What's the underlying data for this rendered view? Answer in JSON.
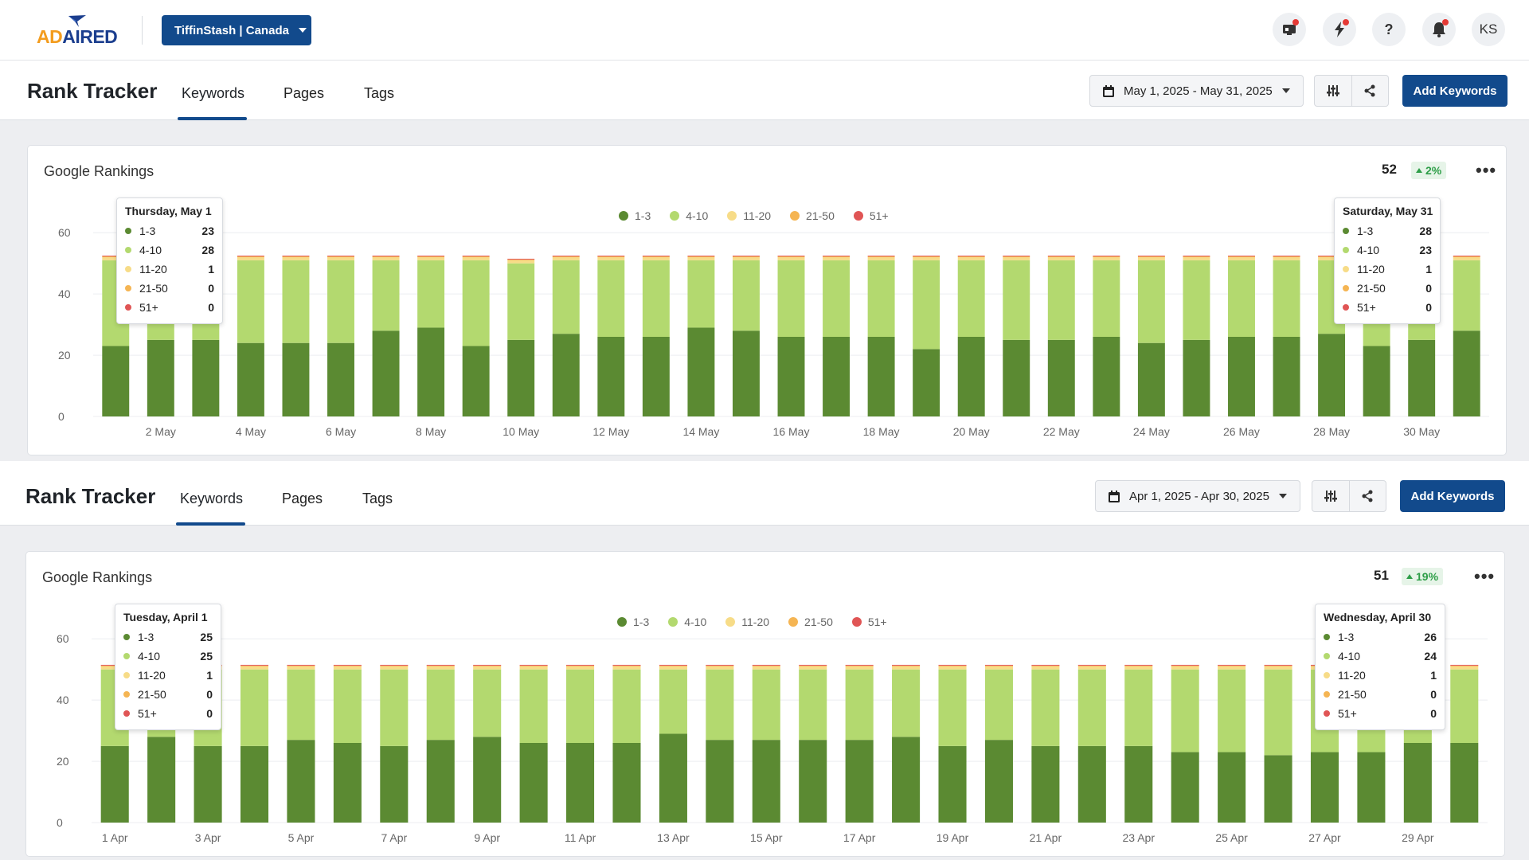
{
  "topbar": {
    "account_label": "TiffinStash | Canada",
    "avatar_initials": "KS",
    "icons": [
      "monitor-alert-icon",
      "bolt-icon",
      "help-icon",
      "bell-icon"
    ]
  },
  "colors": {
    "rank_1_3": "#5b8a32",
    "rank_4_10": "#b3d96f",
    "rank_11_20": "#f7dc88",
    "rank_21_50": "#f5b553",
    "rank_51_plus": "#e05555",
    "primary": "#124a8c"
  },
  "legend": [
    "1-3",
    "4-10",
    "11-20",
    "21-50",
    "51+"
  ],
  "panels": [
    {
      "title": "Rank Tracker",
      "tabs": [
        "Keywords",
        "Pages",
        "Tags"
      ],
      "active_tab": "Keywords",
      "date_range": "May 1, 2025 - May 31, 2025",
      "add_label": "Add Keywords",
      "card_title": "Google Rankings",
      "total": "52",
      "change": "2%",
      "tooltip_left": {
        "title": "Thursday, May 1",
        "rows": [
          {
            "label": "1-3",
            "value": "23"
          },
          {
            "label": "4-10",
            "value": "28"
          },
          {
            "label": "11-20",
            "value": "1"
          },
          {
            "label": "21-50",
            "value": "0"
          },
          {
            "label": "51+",
            "value": "0"
          }
        ]
      },
      "tooltip_right": {
        "title": "Saturday, May 31",
        "rows": [
          {
            "label": "1-3",
            "value": "28"
          },
          {
            "label": "4-10",
            "value": "23"
          },
          {
            "label": "11-20",
            "value": "1"
          },
          {
            "label": "21-50",
            "value": "0"
          },
          {
            "label": "51+",
            "value": "0"
          }
        ]
      }
    },
    {
      "title": "Rank Tracker",
      "tabs": [
        "Keywords",
        "Pages",
        "Tags"
      ],
      "active_tab": "Keywords",
      "date_range": "Apr 1, 2025 - Apr 30, 2025",
      "add_label": "Add Keywords",
      "card_title": "Google Rankings",
      "total": "51",
      "change": "19%",
      "tooltip_left": {
        "title": "Tuesday, April 1",
        "rows": [
          {
            "label": "1-3",
            "value": "25"
          },
          {
            "label": "4-10",
            "value": "25"
          },
          {
            "label": "11-20",
            "value": "1"
          },
          {
            "label": "21-50",
            "value": "0"
          },
          {
            "label": "51+",
            "value": "0"
          }
        ]
      },
      "tooltip_right": {
        "title": "Wednesday, April 30",
        "rows": [
          {
            "label": "1-3",
            "value": "26"
          },
          {
            "label": "4-10",
            "value": "24"
          },
          {
            "label": "11-20",
            "value": "1"
          },
          {
            "label": "21-50",
            "value": "0"
          },
          {
            "label": "51+",
            "value": "0"
          }
        ]
      }
    }
  ],
  "chart_data": [
    {
      "type": "bar",
      "stacked": true,
      "title": "Google Rankings",
      "ylim": [
        0,
        65
      ],
      "yticks": [
        0,
        20,
        40,
        60
      ],
      "grid": true,
      "legend_position": "top-center",
      "categories": [
        "1 May",
        "2 May",
        "3 May",
        "4 May",
        "5 May",
        "6 May",
        "7 May",
        "8 May",
        "9 May",
        "10 May",
        "11 May",
        "12 May",
        "13 May",
        "14 May",
        "15 May",
        "16 May",
        "17 May",
        "18 May",
        "19 May",
        "20 May",
        "21 May",
        "22 May",
        "23 May",
        "24 May",
        "25 May",
        "26 May",
        "27 May",
        "28 May",
        "29 May",
        "30 May",
        "31 May"
      ],
      "xtick_labels": [
        "2 May",
        "4 May",
        "6 May",
        "8 May",
        "10 May",
        "12 May",
        "14 May",
        "16 May",
        "18 May",
        "20 May",
        "22 May",
        "24 May",
        "26 May",
        "28 May",
        "30 May"
      ],
      "series": [
        {
          "name": "1-3",
          "values": [
            23,
            25,
            25,
            24,
            24,
            24,
            28,
            29,
            23,
            25,
            27,
            26,
            26,
            29,
            28,
            26,
            26,
            26,
            22,
            26,
            25,
            25,
            26,
            24,
            25,
            26,
            26,
            27,
            23,
            25,
            28
          ]
        },
        {
          "name": "4-10",
          "values": [
            28,
            26,
            26,
            27,
            27,
            27,
            23,
            22,
            28,
            25,
            24,
            25,
            25,
            22,
            23,
            25,
            25,
            25,
            29,
            25,
            26,
            26,
            25,
            27,
            26,
            25,
            25,
            24,
            28,
            26,
            23
          ]
        },
        {
          "name": "11-20",
          "values": [
            1,
            1,
            1,
            1,
            1,
            1,
            1,
            1,
            1,
            1,
            1,
            1,
            1,
            1,
            1,
            1,
            1,
            1,
            1,
            1,
            1,
            1,
            1,
            1,
            1,
            1,
            1,
            1,
            1,
            1,
            1
          ]
        },
        {
          "name": "21-50",
          "values": [
            0,
            0,
            0,
            0,
            0,
            0,
            0,
            0,
            0,
            0,
            0,
            0,
            0,
            0,
            0,
            0,
            0,
            0,
            0,
            0,
            0,
            0,
            0,
            0,
            0,
            0,
            0,
            0,
            0,
            0,
            0
          ]
        },
        {
          "name": "51+",
          "values": [
            0,
            0,
            0,
            0,
            0,
            0,
            0,
            0,
            0,
            0,
            0,
            0,
            0,
            0,
            0,
            0,
            0,
            0,
            0,
            0,
            0,
            0,
            0,
            0,
            0,
            0,
            0,
            0,
            0,
            0,
            0
          ]
        }
      ]
    },
    {
      "type": "bar",
      "stacked": true,
      "title": "Google Rankings",
      "ylim": [
        0,
        65
      ],
      "yticks": [
        0,
        20,
        40,
        60
      ],
      "grid": true,
      "legend_position": "top-center",
      "categories": [
        "1 Apr",
        "2 Apr",
        "3 Apr",
        "4 Apr",
        "5 Apr",
        "6 Apr",
        "7 Apr",
        "8 Apr",
        "9 Apr",
        "10 Apr",
        "11 Apr",
        "12 Apr",
        "13 Apr",
        "14 Apr",
        "15 Apr",
        "16 Apr",
        "17 Apr",
        "18 Apr",
        "19 Apr",
        "20 Apr",
        "21 Apr",
        "22 Apr",
        "23 Apr",
        "24 Apr",
        "25 Apr",
        "26 Apr",
        "27 Apr",
        "28 Apr",
        "29 Apr",
        "30 Apr"
      ],
      "xtick_labels": [
        "1 Apr",
        "3 Apr",
        "5 Apr",
        "7 Apr",
        "9 Apr",
        "11 Apr",
        "13 Apr",
        "15 Apr",
        "17 Apr",
        "19 Apr",
        "21 Apr",
        "23 Apr",
        "25 Apr",
        "27 Apr",
        "29 Apr"
      ],
      "series": [
        {
          "name": "1-3",
          "values": [
            25,
            28,
            25,
            25,
            27,
            26,
            25,
            27,
            28,
            26,
            26,
            26,
            29,
            27,
            27,
            27,
            27,
            28,
            25,
            27,
            25,
            25,
            25,
            23,
            23,
            22,
            23,
            23,
            26,
            26
          ]
        },
        {
          "name": "4-10",
          "values": [
            25,
            22,
            25,
            25,
            23,
            24,
            25,
            23,
            22,
            24,
            24,
            24,
            21,
            23,
            23,
            23,
            23,
            22,
            25,
            23,
            25,
            25,
            25,
            27,
            27,
            28,
            27,
            27,
            24,
            24
          ]
        },
        {
          "name": "11-20",
          "values": [
            1,
            1,
            1,
            1,
            1,
            1,
            1,
            1,
            1,
            1,
            1,
            1,
            1,
            1,
            1,
            1,
            1,
            1,
            1,
            1,
            1,
            1,
            1,
            1,
            1,
            1,
            1,
            1,
            1,
            1
          ]
        },
        {
          "name": "21-50",
          "values": [
            0,
            0,
            0,
            0,
            0,
            0,
            0,
            0,
            0,
            0,
            0,
            0,
            0,
            0,
            0,
            0,
            0,
            0,
            0,
            0,
            0,
            0,
            0,
            0,
            0,
            0,
            0,
            0,
            0,
            0
          ]
        },
        {
          "name": "51+",
          "values": [
            0,
            0,
            0,
            0,
            0,
            0,
            0,
            0,
            0,
            0,
            0,
            0,
            0,
            0,
            0,
            0,
            0,
            0,
            0,
            0,
            0,
            0,
            0,
            0,
            0,
            0,
            0,
            0,
            0,
            0
          ]
        }
      ]
    }
  ]
}
